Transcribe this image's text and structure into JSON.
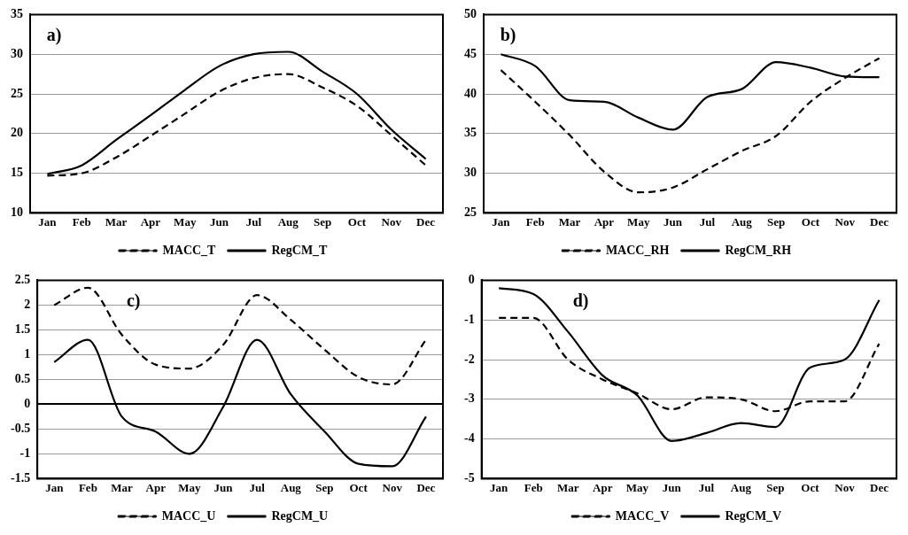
{
  "chart_data": [
    {
      "type": "line",
      "annotations": [
        "a)"
      ],
      "categories": [
        "Jan",
        "Feb",
        "Mar",
        "Apr",
        "May",
        "Jun",
        "Jul",
        "Aug",
        "Sep",
        "Oct",
        "Nov",
        "Dec"
      ],
      "ylim": [
        10,
        35
      ],
      "yticks": [
        10,
        15,
        20,
        25,
        30,
        35
      ],
      "grid": "y",
      "legend": "bottom",
      "marker": "none",
      "series": [
        {
          "name": "MACC_T",
          "color": "#000000",
          "line_style": "dashed",
          "values": [
            14.7,
            15.0,
            17.0,
            19.7,
            22.5,
            25.3,
            27.0,
            27.5,
            25.8,
            23.5,
            19.8,
            16.0
          ]
        },
        {
          "name": "RegCM_T",
          "color": "#000000",
          "line_style": "solid",
          "values": [
            14.9,
            16.0,
            19.2,
            22.3,
            25.5,
            28.5,
            30.0,
            30.3,
            27.8,
            25.0,
            20.5,
            16.8
          ]
        }
      ]
    },
    {
      "type": "line",
      "annotations": [
        "b)"
      ],
      "categories": [
        "Jan",
        "Feb",
        "Mar",
        "Apr",
        "May",
        "Jun",
        "Jul",
        "Aug",
        "Sep",
        "Oct",
        "Nov",
        "Dec"
      ],
      "ylim": [
        25,
        50
      ],
      "yticks": [
        25,
        30,
        35,
        40,
        45,
        50
      ],
      "grid": "y",
      "legend": "bottom",
      "marker": "none",
      "series": [
        {
          "name": "MACC_RH",
          "color": "#000000",
          "line_style": "dashed",
          "values": [
            43.0,
            39.0,
            34.8,
            30.2,
            27.6,
            28.2,
            30.5,
            32.8,
            34.7,
            39.0,
            42.0,
            44.5
          ]
        },
        {
          "name": "RegCM_RH",
          "color": "#000000",
          "line_style": "solid",
          "values": [
            45.0,
            43.5,
            39.2,
            39.0,
            37.0,
            35.5,
            39.6,
            40.6,
            44.0,
            43.3,
            42.2,
            42.1
          ]
        }
      ]
    },
    {
      "type": "line",
      "annotations": [
        "c)"
      ],
      "categories": [
        "Jan",
        "Feb",
        "Mar",
        "Apr",
        "May",
        "Jun",
        "Jul",
        "Aug",
        "Sep",
        "Oct",
        "Nov",
        "Dec"
      ],
      "ylim": [
        -1.5,
        2.5
      ],
      "yticks": [
        -1.5,
        -1,
        -0.5,
        0,
        0.5,
        1,
        1.5,
        2,
        2.5
      ],
      "grid": "y",
      "legend": "bottom",
      "marker": "none",
      "series": [
        {
          "name": "MACC_U",
          "color": "#000000",
          "line_style": "dashed",
          "values": [
            2.0,
            2.35,
            1.4,
            0.8,
            0.72,
            1.2,
            2.2,
            1.7,
            1.1,
            0.55,
            0.4,
            1.3
          ]
        },
        {
          "name": "RegCM_U",
          "color": "#000000",
          "line_style": "solid",
          "values": [
            0.85,
            1.3,
            -0.25,
            -0.55,
            -1.0,
            -0.05,
            1.3,
            0.2,
            -0.55,
            -1.2,
            -1.25,
            -0.25
          ]
        }
      ]
    },
    {
      "type": "line",
      "annotations": [
        "d)"
      ],
      "categories": [
        "Jan",
        "Feb",
        "Mar",
        "Apr",
        "May",
        "Jun",
        "Jul",
        "Aug",
        "Sep",
        "Oct",
        "Nov",
        "Dec"
      ],
      "ylim": [
        -5,
        0
      ],
      "yticks": [
        -5,
        -4,
        -3,
        -2,
        -1,
        0
      ],
      "grid": "y",
      "legend": "bottom",
      "marker": "none",
      "series": [
        {
          "name": "MACC_V",
          "color": "#000000",
          "line_style": "dashed",
          "values": [
            -0.95,
            -0.95,
            -2.0,
            -2.5,
            -2.85,
            -3.25,
            -2.95,
            -3.0,
            -3.3,
            -3.05,
            -3.05,
            -1.6
          ]
        },
        {
          "name": "RegCM_V",
          "color": "#000000",
          "line_style": "solid",
          "values": [
            -0.2,
            -0.35,
            -1.3,
            -2.4,
            -2.9,
            -4.05,
            -3.85,
            -3.6,
            -3.7,
            -2.2,
            -2.0,
            -0.5
          ]
        }
      ]
    }
  ]
}
